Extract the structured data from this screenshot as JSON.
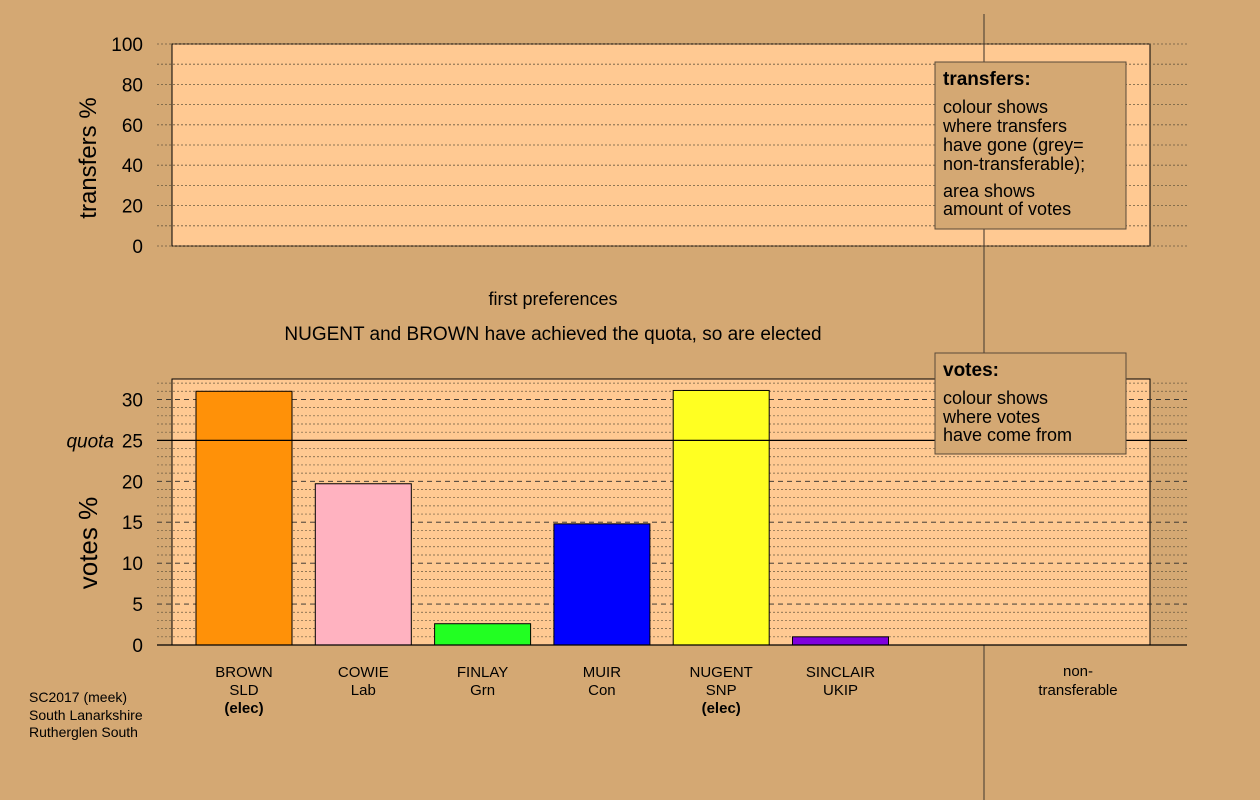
{
  "chart_data": {
    "type": "bar",
    "colors": {
      "background": "#d4a873",
      "panel": "#ffc992",
      "legend_box": "#d4a873"
    },
    "transfers_panel": {
      "ylabel": "transfers %",
      "ylim": [
        0,
        100
      ],
      "ticks": [
        "0",
        "20",
        "40",
        "60",
        "80",
        "100"
      ],
      "tick_values": [
        0,
        20,
        40,
        60,
        80,
        100
      ],
      "legend": {
        "title": "transfers:",
        "lines": [
          "colour shows",
          "where transfers",
          "have gone (grey=",
          "non-transferable);"
        ],
        "lines2": [
          "area shows",
          "amount of votes"
        ]
      }
    },
    "caption": "first preferences",
    "subtitle": "NUGENT and BROWN have achieved the quota, so are elected",
    "votes_panel": {
      "ylabel": "votes %",
      "ylim": [
        0,
        32.5
      ],
      "ticks": [
        "0",
        "5",
        "10",
        "15",
        "20",
        "25",
        "30"
      ],
      "tick_values": [
        0,
        5,
        10,
        15,
        20,
        25,
        30
      ],
      "quota_label": "quota",
      "quota": 25,
      "legend": {
        "title": "votes:",
        "lines": [
          "colour shows",
          "where votes",
          "have come from"
        ]
      }
    },
    "categories": [
      {
        "name": "BROWN",
        "party": "SLD",
        "status": "(elec)",
        "value": 31.0,
        "color": "#ff9108"
      },
      {
        "name": "COWIE",
        "party": "Lab",
        "status": "",
        "value": 19.7,
        "color": "#ffb2c0"
      },
      {
        "name": "FINLAY",
        "party": "Grn",
        "status": "",
        "value": 2.6,
        "color": "#22ff22"
      },
      {
        "name": "MUIR",
        "party": "Con",
        "status": "",
        "value": 14.8,
        "color": "#0000ff"
      },
      {
        "name": "NUGENT",
        "party": "SNP",
        "status": "(elec)",
        "value": 31.1,
        "color": "#ffff22"
      },
      {
        "name": "SINCLAIR",
        "party": "UKIP",
        "status": "",
        "value": 1.0,
        "color": "#8000dd"
      }
    ],
    "nontransferable_label": [
      "non-",
      "transferable"
    ],
    "footer": [
      "SC2017 (meek)",
      "South Lanarkshire",
      "Rutherglen South"
    ]
  }
}
